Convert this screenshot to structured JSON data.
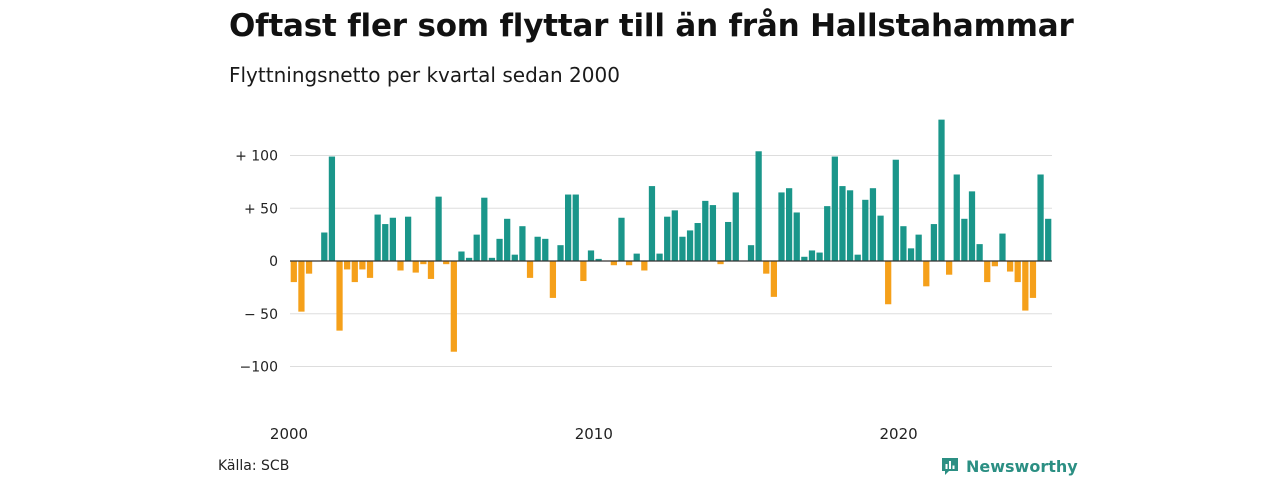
{
  "title": "Oftast fler som flyttar till än från Hallstahammar",
  "subtitle": "Flyttningsnetto per kvartal sedan 2000",
  "source": "Källa: SCB",
  "brand": "Newsworthy",
  "colors": {
    "positive": "#1a968a",
    "negative": "#f5a01a",
    "grid": "#dddddd",
    "zero": "#333333"
  },
  "chart_data": {
    "type": "bar",
    "ylim": [
      -130,
      130
    ],
    "yticks": [
      {
        "value": 100,
        "label": "+ 100"
      },
      {
        "value": 50,
        "label": "+  50"
      },
      {
        "value": 0,
        "label": "0"
      },
      {
        "value": -50,
        "label": "− 50"
      },
      {
        "value": -100,
        "label": "−100"
      }
    ],
    "xticks": [
      {
        "index": 0,
        "label": "2000"
      },
      {
        "index": 40,
        "label": "2010"
      },
      {
        "index": 80,
        "label": "2020"
      }
    ],
    "values": [
      -20,
      -48,
      -12,
      0,
      27,
      99,
      -66,
      -8,
      -20,
      -8,
      -16,
      44,
      35,
      41,
      -9,
      42,
      -11,
      -3,
      -17,
      61,
      -3,
      -86,
      9,
      3,
      25,
      60,
      3,
      21,
      40,
      6,
      33,
      -16,
      23,
      21,
      -35,
      15,
      63,
      63,
      -19,
      10,
      2,
      0,
      -4,
      41,
      -4,
      7,
      -9,
      71,
      7,
      42,
      48,
      23,
      29,
      36,
      57,
      53,
      -3,
      37,
      65,
      0,
      15,
      104,
      -12,
      -34,
      65,
      69,
      46,
      4,
      10,
      8,
      52,
      99,
      71,
      67,
      6,
      58,
      69,
      43,
      -41,
      96,
      33,
      12,
      25,
      -24,
      35,
      134,
      -13,
      82,
      40,
      66,
      16,
      -20,
      -5,
      26,
      -10,
      -20,
      -47,
      -35,
      82,
      40
    ]
  }
}
